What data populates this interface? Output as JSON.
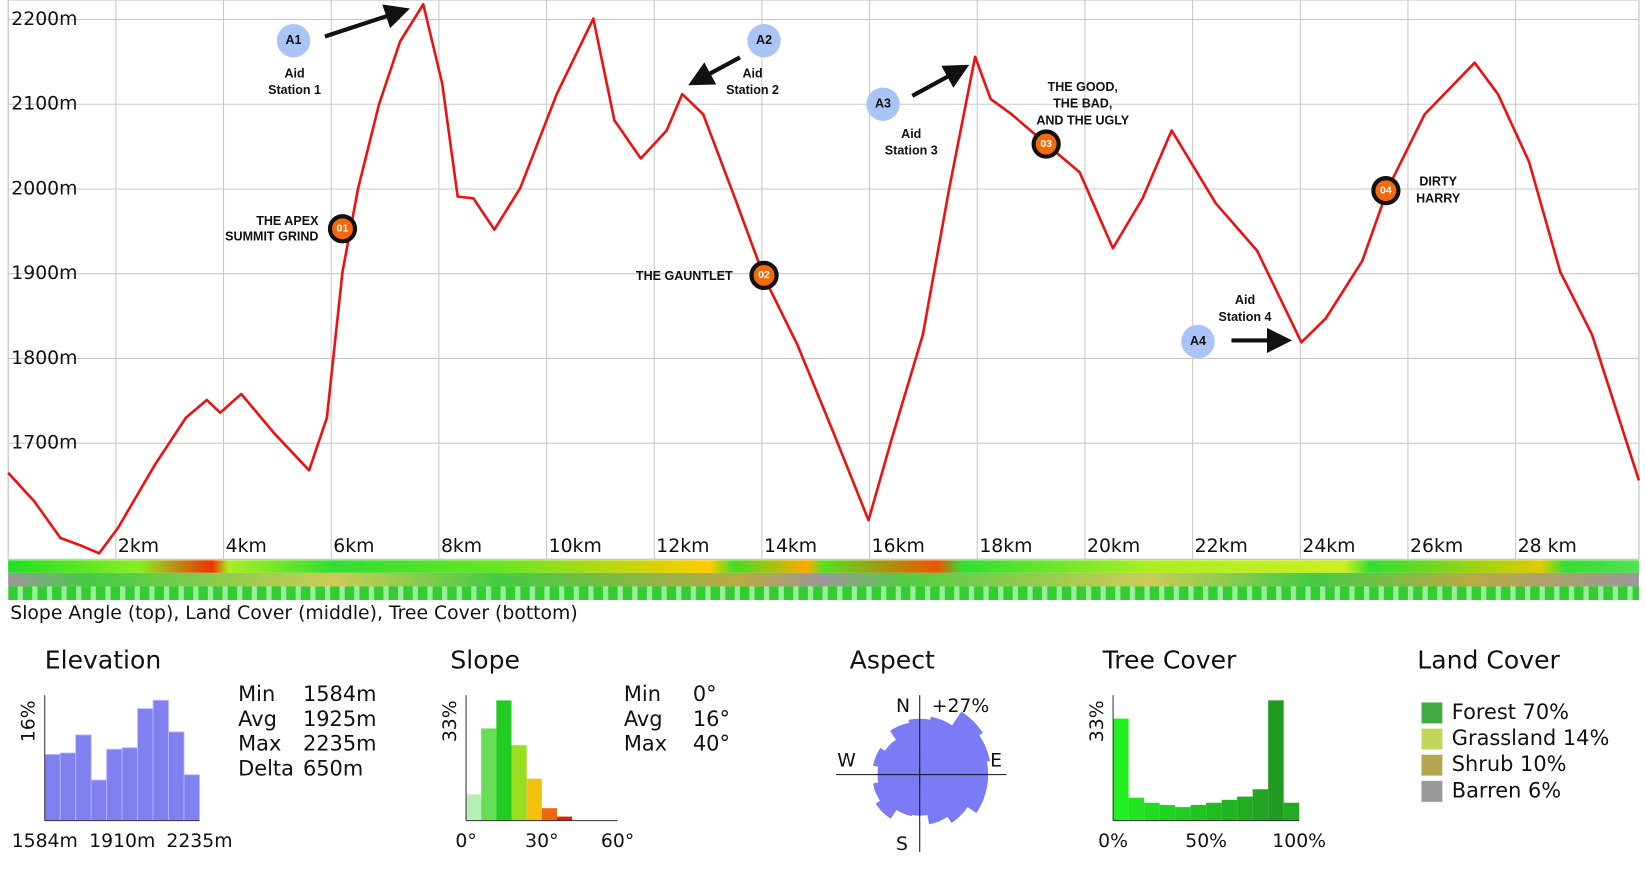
{
  "chart_data": [
    {
      "type": "line",
      "caption": "Slope Angle (top), Land Cover (middle), Tree Cover (bottom)",
      "x": [
        0,
        0.49,
        0.97,
        1.36,
        1.69,
        2.04,
        2.72,
        3.3,
        3.69,
        3.94,
        4.33,
        4.95,
        5.59,
        5.92,
        6.21,
        6.5,
        6.89,
        7.28,
        7.71,
        8.06,
        8.35,
        8.64,
        9.03,
        9.51,
        10.19,
        10.87,
        11.26,
        11.75,
        12.23,
        12.52,
        12.91,
        13.5,
        14.04,
        14.66,
        15.34,
        15.98,
        16.41,
        16.99,
        17.48,
        17.96,
        18.25,
        18.64,
        19.28,
        19.9,
        20.52,
        21.07,
        21.61,
        22.43,
        23.2,
        24.02,
        24.47,
        25.15,
        25.63,
        26.31,
        27.24,
        27.67,
        28.25,
        28.83,
        29.42,
        30.29
      ],
      "values": [
        1665,
        1631,
        1588,
        1579,
        1570,
        1600,
        1674,
        1730,
        1751,
        1736,
        1758,
        1711,
        1668,
        1730,
        1902,
        2001,
        2100,
        2174,
        2218,
        2125,
        1991,
        1989,
        1952,
        2001,
        2112,
        2201,
        2081,
        2036,
        2069,
        2112,
        2088,
        1989,
        1896,
        1816,
        1711,
        1609,
        1705,
        1828,
        2001,
        2156,
        2106,
        2088,
        2053,
        2020,
        1930,
        1989,
        2069,
        1983,
        1927,
        1819,
        1847,
        1915,
        2001,
        2088,
        2149,
        2112,
        2032,
        1902,
        1828,
        1656
      ],
      "color": "#ee1111",
      "grid": true,
      "xlim": [
        0,
        30.29
      ],
      "ylim": [
        1563,
        2223
      ],
      "xticks": [
        {
          "value": 2,
          "label": "2km"
        },
        {
          "value": 4,
          "label": "4km"
        },
        {
          "value": 6,
          "label": "6km"
        },
        {
          "value": 8,
          "label": "8km"
        },
        {
          "value": 10,
          "label": "10km"
        },
        {
          "value": 12,
          "label": "12km"
        },
        {
          "value": 14,
          "label": "14km"
        },
        {
          "value": 16,
          "label": "16km"
        },
        {
          "value": 18,
          "label": "18km"
        },
        {
          "value": 20,
          "label": "20km"
        },
        {
          "value": 22,
          "label": "22km"
        },
        {
          "value": 24,
          "label": "24km"
        },
        {
          "value": 26,
          "label": "26km"
        },
        {
          "value": 28,
          "label": "28 km"
        }
      ],
      "yticks": [
        {
          "value": 1700,
          "label": "1700m"
        },
        {
          "value": 1800,
          "label": "1800m"
        },
        {
          "value": 1900,
          "label": "1900m"
        },
        {
          "value": 2000,
          "label": "2000m"
        },
        {
          "value": 2100,
          "label": "2100m"
        },
        {
          "value": 2200,
          "label": "2200m"
        }
      ],
      "markers": [
        {
          "label": "01",
          "text": [
            "THE APEX",
            "SUMMIT GRIND"
          ],
          "x": 6.21,
          "y": 1953
        },
        {
          "label": "02",
          "text": [
            "THE GAUNTLET"
          ],
          "x": 14.04,
          "y": 1898
        },
        {
          "label": "03",
          "text": [
            "THE GOOD,",
            "THE BAD,",
            "AND THE UGLY"
          ],
          "x": 19.28,
          "y": 2053
        },
        {
          "label": "04",
          "text": [
            "DIRTY",
            "HARRY"
          ],
          "x": 25.59,
          "y": 1998
        }
      ],
      "aid_stations": [
        {
          "label": "A1",
          "text": [
            "Aid",
            "Station 1"
          ],
          "x": 5.3,
          "y": 2175
        },
        {
          "label": "A2",
          "text": [
            "Aid",
            "Station 2"
          ],
          "x": 14.04,
          "y": 2175
        },
        {
          "label": "A3",
          "text": [
            "Aid",
            "Station 3"
          ],
          "x": 16.25,
          "y": 2100
        },
        {
          "label": "A4",
          "text": [
            "Aid",
            "Station 4"
          ],
          "x": 22.1,
          "y": 1820
        }
      ]
    },
    {
      "type": "histogram",
      "title": "Elevation",
      "color": "#8080f0",
      "bins": [
        1584,
        1649.1,
        1714.2,
        1779.3,
        1844.4,
        1909.5,
        1974.6,
        2039.7,
        2104.8,
        2169.9,
        2235
      ],
      "values": [
        8.8,
        9.0,
        11.4,
        5.4,
        9.5,
        9.7,
        14.9,
        16.0,
        11.8,
        6.1
      ],
      "xlim": [
        1584,
        2235
      ],
      "ylim": [
        0,
        16
      ],
      "xticks": [
        {
          "value": 1584,
          "label": "1584m"
        },
        {
          "value": 1910,
          "label": "1910m"
        },
        {
          "value": 2235,
          "label": "2235m"
        }
      ],
      "yticks": [
        {
          "value": 16,
          "label": "16%"
        }
      ],
      "stats": [
        [
          "Min",
          "1584m"
        ],
        [
          "Avg",
          "1925m"
        ],
        [
          "Max",
          "2235m"
        ],
        [
          "Delta",
          "650m"
        ]
      ]
    },
    {
      "type": "histogram",
      "title": "Slope",
      "colors": [
        "#b4f0b4",
        "#66dd55",
        "#22cc22",
        "#99dd22",
        "#f4c010",
        "#ee6610",
        "#dd2211"
      ],
      "bins": [
        0,
        6,
        12,
        18,
        24,
        30,
        36,
        42
      ],
      "values": [
        7.2,
        25.3,
        33,
        20.7,
        11.5,
        3.4,
        1.1
      ],
      "xlim": [
        0,
        60
      ],
      "ylim": [
        0,
        33
      ],
      "xticks": [
        {
          "value": 0,
          "label": "0°"
        },
        {
          "value": 30,
          "label": "30°"
        },
        {
          "value": 60,
          "label": "60°"
        }
      ],
      "yticks": [
        {
          "value": 33,
          "label": "33%"
        }
      ],
      "stats": [
        [
          "Min",
          "0°"
        ],
        [
          "Avg",
          "16°"
        ],
        [
          "Max",
          "40°"
        ]
      ]
    },
    {
      "type": "polar",
      "title": "Aspect",
      "color": "#7b7bf5",
      "categories": [
        "N",
        null,
        null,
        null,
        "E",
        null,
        null,
        null,
        "S",
        null,
        null,
        null,
        "W",
        null,
        null,
        null
      ],
      "values": [
        19.9,
        21,
        27,
        25.5,
        24.4,
        24.4,
        20.6,
        18,
        14.6,
        15,
        18.8,
        16.9,
        15,
        16.9,
        15,
        18.8
      ],
      "rlim": [
        0,
        27
      ],
      "rticks": [
        {
          "value": 27,
          "label": "+27%"
        }
      ]
    },
    {
      "type": "histogram",
      "title": "Tree Cover",
      "colors": [
        "#22ee22",
        "#22e422",
        "#22dc22",
        "#22d422",
        "#22cc22",
        "#22c422",
        "#22bc22",
        "#22b422",
        "#22ac22",
        "#22a422",
        "#229a22",
        "#22aa22"
      ],
      "bins": [
        0,
        8.33,
        16.67,
        25,
        33.33,
        41.67,
        50,
        58.33,
        66.67,
        75,
        83.33,
        91.67,
        100
      ],
      "values": [
        28,
        6.3,
        4.9,
        4.3,
        3.7,
        4.3,
        4.9,
        5.7,
        6.6,
        8.6,
        33,
        4.9
      ],
      "xlim": [
        0,
        100
      ],
      "ylim": [
        0,
        33
      ],
      "xticks": [
        {
          "value": 0,
          "label": "0%"
        },
        {
          "value": 50,
          "label": "50%"
        },
        {
          "value": 100,
          "label": "100%"
        }
      ],
      "yticks": [
        {
          "value": 33,
          "label": "33%"
        }
      ]
    },
    {
      "type": "legend",
      "title": "Land Cover",
      "items": [
        {
          "label": "Forest 70%",
          "color": "#44aa44"
        },
        {
          "label": "Grassland 14%",
          "color": "#c4d65a"
        },
        {
          "label": "Shrub 10%",
          "color": "#b4a650"
        },
        {
          "label": "Barren 6%",
          "color": "#999999"
        }
      ]
    }
  ]
}
